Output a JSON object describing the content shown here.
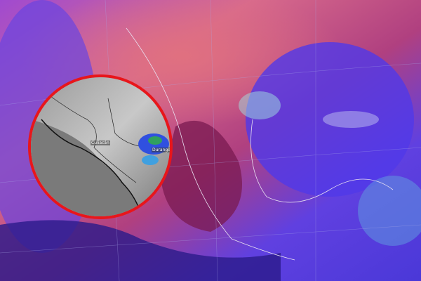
{
  "colors": {
    "land_warm": "#c8507a",
    "ocean_cold": "#5a3ce6",
    "cloud_dark": "#2a1a7a",
    "inset_border": "#e8161b",
    "inset_gray": "#8a8a8a"
  },
  "inset": {
    "labels": [
      "Culiacán",
      "Durango"
    ]
  }
}
